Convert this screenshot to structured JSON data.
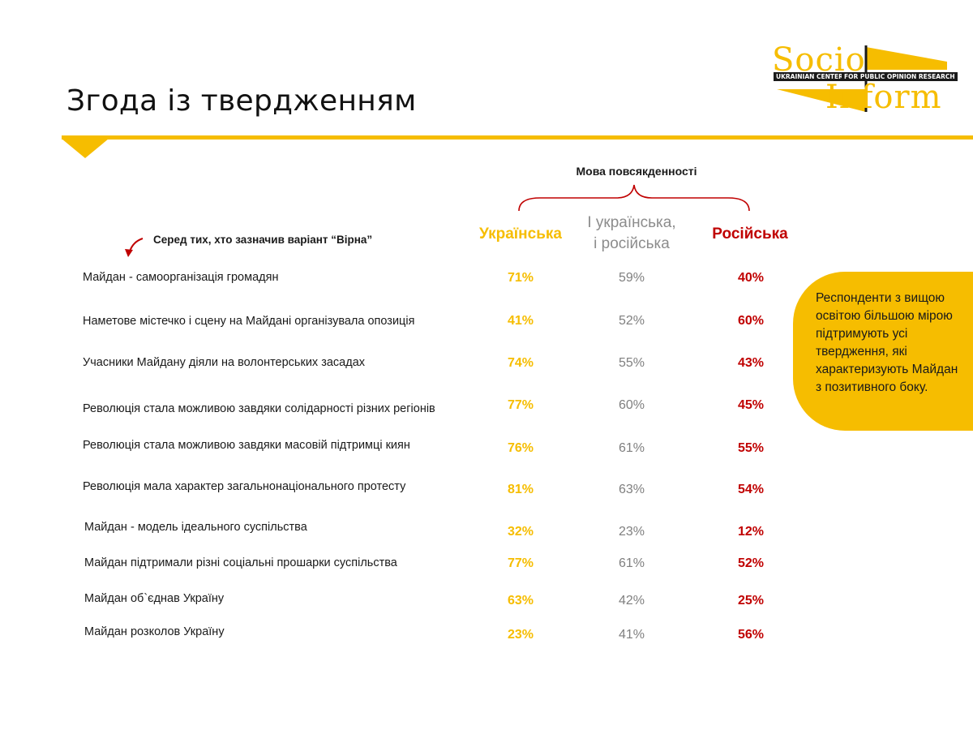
{
  "header": {
    "title": "Згода із твердженням"
  },
  "logo": {
    "word_top": "Socio",
    "word_bottom": "Inform",
    "band_left": "UKRAINIAN CENTER",
    "band_right": "FOR PUBLIC OPINION RESEARCH"
  },
  "table": {
    "group_label": "Мова повсякденності",
    "filter_note": "Серед тих, хто зазначив варіант “Вірна”",
    "columns": {
      "ukrainian": "Українська",
      "both_line1": "І українська,",
      "both_line2": "і російська",
      "russian": "Російська"
    },
    "rows": [
      {
        "label": "Майдан - самоорганізація громадян",
        "uk": "71%",
        "both": "59%",
        "ru": "40%"
      },
      {
        "label": "Наметове містечко і сцену на Майдані організувала опозиція",
        "uk": "41%",
        "both": "52%",
        "ru": "60%"
      },
      {
        "label": "Учасники Майдану діяли на волонтерських засадах",
        "uk": "74%",
        "both": "55%",
        "ru": "43%"
      },
      {
        "label": "Революція стала можливою завдяки солідарності різних регіонів",
        "uk": "77%",
        "both": "60%",
        "ru": "45%"
      },
      {
        "label": "Революція стала можливою завдяки масовій підтримці киян",
        "uk": "76%",
        "both": "61%",
        "ru": "55%"
      },
      {
        "label": "Революція мала характер загальнонаціонального протесту",
        "uk": "81%",
        "both": "63%",
        "ru": "54%"
      },
      {
        "label": "Майдан - модель ідеального суспільства",
        "uk": "32%",
        "both": "23%",
        "ru": "12%"
      },
      {
        "label": "Майдан підтримали різні соціальні прошарки суспільства",
        "uk": "77%",
        "both": "61%",
        "ru": "52%"
      },
      {
        "label": "Майдан об`єднав Україну",
        "uk": "63%",
        "both": "42%",
        "ru": "25%"
      },
      {
        "label": "Майдан розколов Україну",
        "uk": "23%",
        "both": "41%",
        "ru": "56%"
      }
    ]
  },
  "callout": {
    "text": "Респонденти з вищою освітою більшою мірою підтримують усі твердження, які характеризують Майдан з позитивного боку."
  },
  "colors": {
    "accent_yellow": "#f6bd00",
    "russian_red": "#c00000",
    "both_grey": "#7f7f7f"
  }
}
